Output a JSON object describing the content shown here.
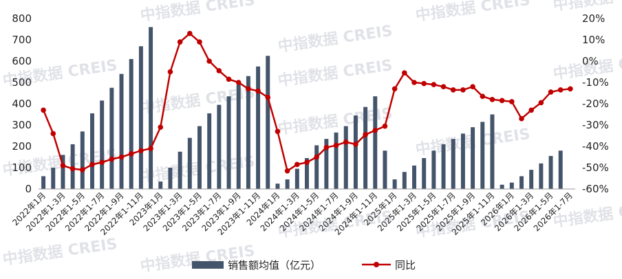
{
  "watermark": "中指数据 CREIS",
  "chart_data": {
    "type": "bar+line",
    "categories": [
      "2022年1月",
      "2022年1-2月",
      "2022年1-3月",
      "2022年1-4月",
      "2022年1-5月",
      "2022年1-6月",
      "2022年1-7月",
      "2022年1-8月",
      "2022年1-9月",
      "2022年1-10月",
      "2022年1-11月",
      "2022年1-12月",
      "2023年1月",
      "2023年1-2月",
      "2023年1-3月",
      "2023年1-4月",
      "2023年1-5月",
      "2023年1-6月",
      "2023年1-7月",
      "2023年1-8月",
      "2023年1-9月",
      "2023年1-10月",
      "2023年1-11月",
      "2023年1-12月",
      "2024年1月",
      "2024年1-2月",
      "2024年1-3月",
      "2024年1-4月",
      "2024年1-5月",
      "2024年1-6月",
      "2024年1-7月",
      "2024年1-8月",
      "2024年1-9月",
      "2024年1-10月",
      "2024年1-11月",
      "2024年1-12月",
      "2025年1月",
      "2025年1-2月",
      "2025年1-3月",
      "2025年1-4月",
      "2025年1-5月",
      "2025年1-6月",
      "2025年1-7月",
      "2025年1-8月",
      "2025年1-9月",
      "2025年1-10月",
      "2025年1-11月",
      "2025年1-12月",
      "2026年1月",
      "2026年1-2月",
      "2026年1-3月",
      "2026年1-4月",
      "2026年1-5月",
      "2026年1-6月",
      "2026年1-7月"
    ],
    "x_tick_labels": [
      "2022年1月",
      "2022年1-3月",
      "2022年1-5月",
      "2022年1-7月",
      "2022年1-9月",
      "2022年1-11月",
      "2023年1月",
      "2023年1-3月",
      "2023年1-5月",
      "2023年1-7月",
      "2023年1-9月",
      "2023年1-11月",
      "2024年1月",
      "2024年1-3月",
      "2024年1-5月",
      "2024年1-7月",
      "2024年1-9月",
      "2024年1-11月",
      "2025年1月",
      "2025年1-3月",
      "2025年1-5月",
      "2025年1-7月",
      "2025年1-9月",
      "2025年1-11月",
      "2026年1月",
      "2026年1-3月",
      "2026年1-5月",
      "2026年1-7月"
    ],
    "series": [
      {
        "name": "销售额均值（亿元）",
        "type": "bar",
        "axis": "left",
        "color": "#44546a",
        "values": [
          60,
          100,
          160,
          210,
          270,
          355,
          415,
          475,
          540,
          610,
          670,
          760,
          35,
          100,
          175,
          240,
          295,
          355,
          395,
          435,
          490,
          530,
          575,
          625,
          25,
          45,
          95,
          145,
          205,
          235,
          265,
          295,
          345,
          385,
          435,
          180,
          45,
          80,
          110,
          145,
          180,
          210,
          235,
          260,
          290,
          315,
          350,
          20,
          30,
          60,
          90,
          120,
          155,
          180,
          0
        ]
      },
      {
        "name": "同比",
        "type": "line",
        "axis": "right",
        "unit": "%",
        "color": "#c00000",
        "values": [
          -23,
          -34,
          -49,
          -50.5,
          -51,
          -48.5,
          -47.5,
          -46,
          -45,
          -43.5,
          -42,
          -41,
          -31,
          -5,
          9,
          13,
          9,
          0,
          -4.5,
          -8.5,
          -10,
          -13,
          -14,
          -17,
          -33,
          -51.5,
          -48.5,
          -47.5,
          -45,
          -40.5,
          -39.5,
          -38,
          -39,
          -34.5,
          -32.5,
          -30.5,
          -13,
          -5.5,
          -10,
          -10.5,
          -11,
          -12,
          -13.5,
          -13.5,
          -12,
          -16.5,
          -18,
          -18.5,
          -19,
          -27,
          -23,
          -19.5,
          -14.5,
          -13.5,
          -13
        ]
      }
    ],
    "y_left": {
      "min": 0,
      "max": 800,
      "ticks": [
        0,
        100,
        200,
        300,
        400,
        500,
        600,
        700,
        800
      ]
    },
    "y_right": {
      "min": -60,
      "max": 20,
      "ticks": [
        "-60%",
        "-50%",
        "-40%",
        "-30%",
        "-20%",
        "-10%",
        "0%",
        "10%",
        "20%"
      ]
    },
    "legend": {
      "placement": "bottom",
      "items": [
        "销售额均值（亿元）",
        "同比"
      ]
    },
    "grid": false
  }
}
